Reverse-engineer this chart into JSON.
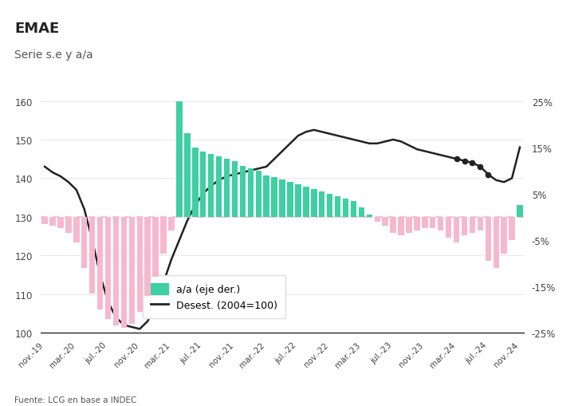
{
  "title": "EMAE",
  "subtitle": "Serie s.e y a/a",
  "source": "Fuente: LCG en base a INDEC",
  "header_bg": "#ebebeb",
  "plot_bg": "#ffffff",
  "bar_color_pos": "#3ecfa3",
  "bar_color_neg": "#f5b8cc",
  "line_color": "#222222",
  "dashed_color": "#f5b8cc",
  "left_ylim": [
    100,
    160
  ],
  "right_ylim": [
    -25,
    25
  ],
  "left_yticks": [
    100,
    110,
    120,
    130,
    140,
    150,
    160
  ],
  "right_yticks": [
    -25,
    -15,
    -5,
    5,
    15,
    25
  ],
  "right_yticklabels": [
    "-25%",
    "-15%",
    "-5%",
    "5%",
    "15%",
    "25%"
  ],
  "tick_labels": [
    "nov.-19",
    "mar.-20",
    "jul.-20",
    "nov.-20",
    "mar.-21",
    "jul.-21",
    "nov.-21",
    "mar.-22",
    "jul.-22",
    "nov.-22",
    "mar.-23",
    "jul.-23",
    "nov.-23",
    "mar.-24",
    "jul.-24",
    "nov.-24"
  ],
  "tick_positions": [
    0,
    4,
    8,
    12,
    16,
    20,
    24,
    28,
    32,
    36,
    40,
    44,
    48,
    52,
    56,
    60
  ],
  "dot_indices": [
    52,
    53,
    54,
    55,
    56
  ],
  "desest_y": [
    143.0,
    141.5,
    140.5,
    139.0,
    137.0,
    132.0,
    124.0,
    115.0,
    108.0,
    104.0,
    102.0,
    101.5,
    101.0,
    103.0,
    107.0,
    113.0,
    119.0,
    124.0,
    129.0,
    133.0,
    136.0,
    138.0,
    139.5,
    140.5,
    141.0,
    141.5,
    142.0,
    142.5,
    143.0,
    145.0,
    147.0,
    149.0,
    151.0,
    152.0,
    152.5,
    152.0,
    151.5,
    151.0,
    150.5,
    150.0,
    149.5,
    149.0,
    149.0,
    149.5,
    150.0,
    149.5,
    148.5,
    147.5,
    147.0,
    146.5,
    146.0,
    145.5,
    145.0,
    144.5,
    144.0,
    143.0,
    141.0,
    139.5,
    139.0,
    140.0,
    148.0
  ],
  "aa_y": [
    -1.5,
    -2.0,
    -2.5,
    -3.5,
    -5.5,
    -11.0,
    -16.5,
    -20.0,
    -22.0,
    -23.5,
    -24.0,
    -23.0,
    -20.5,
    -17.0,
    -13.0,
    -8.0,
    -3.0,
    25.0,
    18.0,
    15.0,
    14.0,
    13.5,
    13.0,
    12.5,
    12.0,
    11.0,
    10.5,
    10.0,
    9.0,
    8.5,
    8.0,
    7.5,
    7.0,
    6.5,
    6.0,
    5.5,
    5.0,
    4.5,
    4.0,
    3.5,
    2.0,
    0.5,
    -1.0,
    -2.0,
    -3.5,
    -4.0,
    -3.5,
    -3.0,
    -2.5,
    -2.5,
    -3.0,
    -4.5,
    -5.5,
    -4.0,
    -3.5,
    -3.0,
    -9.5,
    -11.0,
    -8.0,
    -5.0,
    2.5
  ]
}
